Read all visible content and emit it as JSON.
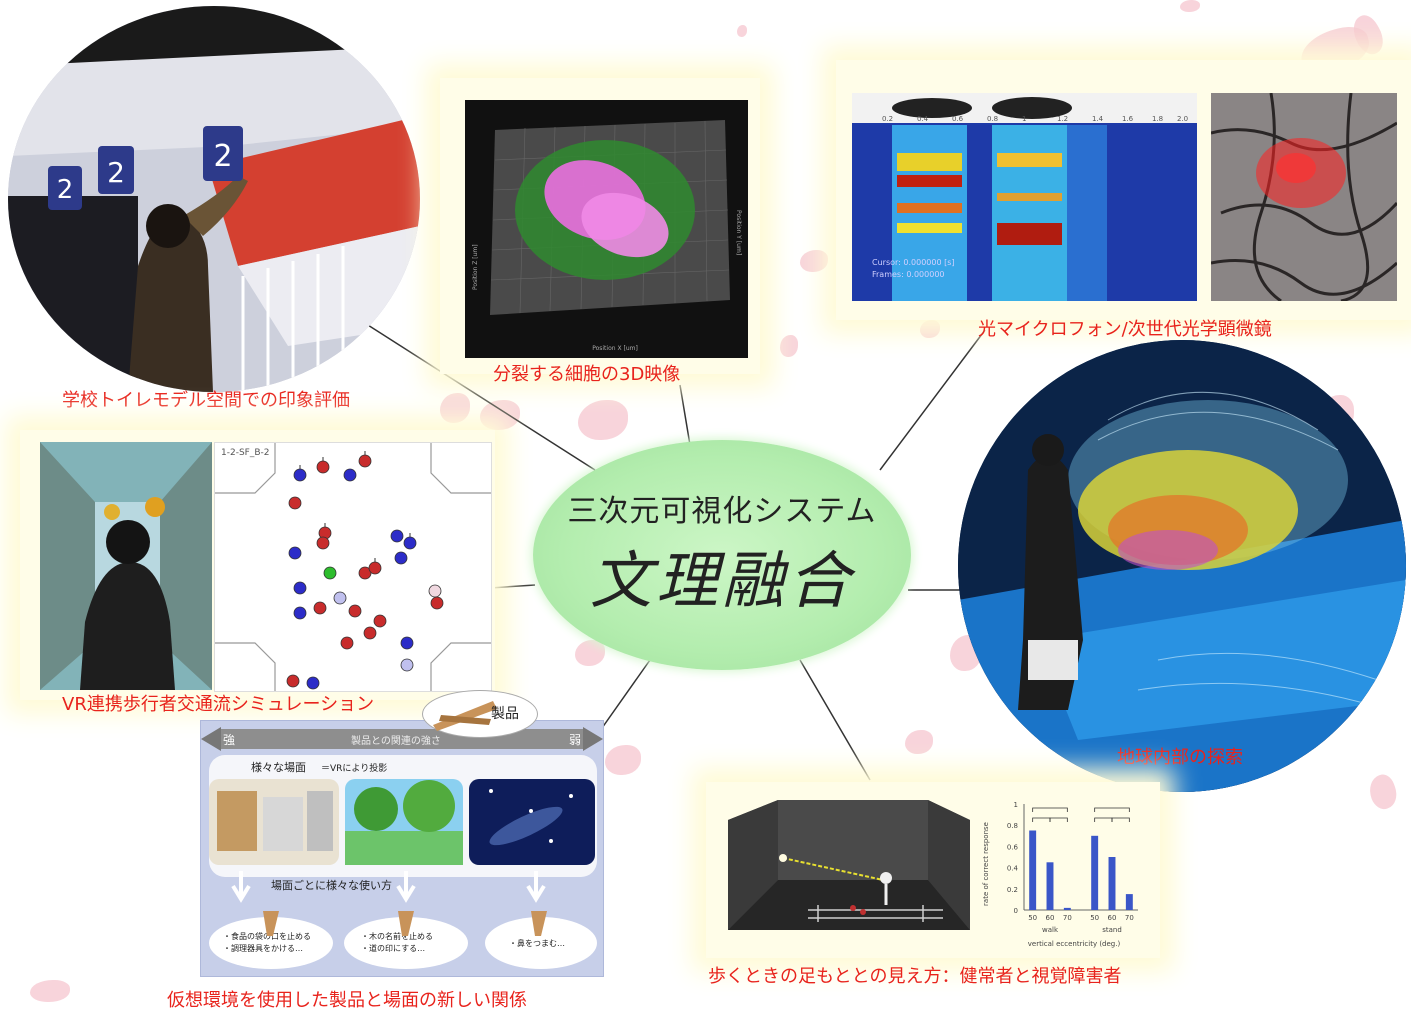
{
  "center": {
    "subtitle": "三次元可視化システム",
    "title": "文理融合"
  },
  "captions": {
    "toilet": "学校トイレモデル空間での印象評価",
    "cell": "分裂する細胞の3D映像",
    "mic": "光マイクロフォン/次世代光学顕微鏡",
    "earth": "地球内部の探索",
    "vr_walk": "VR連携歩行者交通流シミュレーション",
    "product": "仮想環境を使用した製品と場面の新しい関係",
    "footstep": "歩くときの足もととの見え方：健常者と視覚障害者"
  },
  "cell_panel": {
    "xlabel": "Position X [um]",
    "ylabel": "Position Y [um]",
    "zlabel": "Position Z [um]"
  },
  "sign_numbers": [
    "2",
    "2",
    "2"
  ],
  "sim_label": "1-2-SF_B-2",
  "product_panel": {
    "strong": "強",
    "weak": "弱",
    "relation": "製品との関連の強さ",
    "product_tag": "製品",
    "scenes": "様々な場面",
    "scenes_note": "＝VRにより投影",
    "uses": "場面ごとに様々な使い方",
    "use1_a": "・食品の袋の口を止める",
    "use1_b": "・調理器具をかける…",
    "use2_a": "・木の名前を止める",
    "use2_b": "・道の印にする…",
    "use3": "・鼻をつまむ…"
  },
  "spectrogram": {
    "ticks": [
      "0.2",
      "0.4",
      "0.6",
      "0.8",
      "1",
      "1.2",
      "1.4",
      "1.6",
      "1.8",
      "2.0"
    ],
    "info1": "Cursor: 0.000000 [s]",
    "info2": "Frames: 0.000000"
  },
  "chart_data": {
    "type": "bar",
    "ylabel": "rate of correct response",
    "xlabel": "vertical eccentricity (deg.)",
    "ylim": [
      0,
      1
    ],
    "yticks": [
      "0",
      "0.2",
      "0.4",
      "0.6",
      "0.8",
      "1"
    ],
    "groups": [
      "walk",
      "stand"
    ],
    "categories": [
      "50",
      "60",
      "70",
      "50",
      "60",
      "70"
    ],
    "values": [
      0.75,
      0.45,
      0.02,
      0.7,
      0.5,
      0.15
    ],
    "color": "#3a56c8"
  },
  "colors": {
    "caption": "#e8231c",
    "ellipse": "#b9efb4",
    "petal": "#f6c6cf"
  }
}
